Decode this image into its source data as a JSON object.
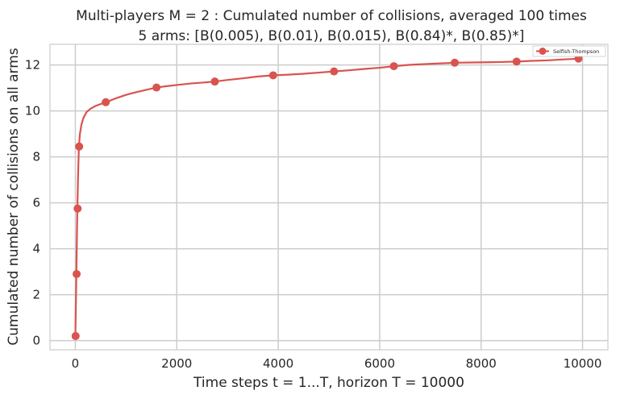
{
  "chart_data": {
    "type": "line",
    "title_line1": "Multi-players M = 2 : Cumulated number of collisions, averaged 100 times",
    "title_line2": "5 arms: [B(0.005), B(0.01), B(0.015), B(0.84)*, B(0.85)*]",
    "xlabel": "Time steps t = 1...T, horizon T = 10000",
    "ylabel": "Cumulated number of collisions on all arms",
    "xlim": [
      -500,
      10500
    ],
    "ylim": [
      -0.4,
      12.9
    ],
    "x_ticks": [
      0,
      2000,
      4000,
      6000,
      8000,
      10000
    ],
    "x_tick_labels": [
      "0",
      "2000",
      "4000",
      "6000",
      "8000",
      "10000"
    ],
    "y_ticks": [
      0,
      2,
      4,
      6,
      8,
      10,
      12
    ],
    "y_tick_labels": [
      "0",
      "2",
      "4",
      "6",
      "8",
      "10",
      "12"
    ],
    "grid": true,
    "legend_position": "top-right",
    "series": [
      {
        "name": "Selfish-Thompson",
        "color": "#d9534f",
        "curve_x": [
          0,
          10,
          20,
          30,
          40,
          55,
          70,
          90,
          120,
          160,
          220,
          300,
          400,
          500,
          600,
          800,
          1000,
          1200,
          1400,
          1600,
          1800,
          2000,
          2300,
          2600,
          2750,
          3000,
          3300,
          3600,
          3900,
          4200,
          4500,
          4800,
          5100,
          5400,
          5700,
          6000,
          6300,
          6600,
          6900,
          7200,
          7500,
          7800,
          8100,
          8400,
          8700,
          9000,
          9300,
          9600,
          9950
        ],
        "curve_y": [
          0.2,
          1.5,
          2.9,
          4.4,
          5.75,
          7.3,
          8.45,
          9.0,
          9.4,
          9.7,
          9.95,
          10.1,
          10.22,
          10.3,
          10.38,
          10.55,
          10.7,
          10.82,
          10.92,
          11.02,
          11.08,
          11.13,
          11.2,
          11.25,
          11.28,
          11.35,
          11.42,
          11.5,
          11.55,
          11.58,
          11.62,
          11.67,
          11.72,
          11.77,
          11.83,
          11.88,
          11.95,
          12.01,
          12.04,
          12.07,
          12.1,
          12.11,
          12.12,
          12.13,
          12.15,
          12.18,
          12.2,
          12.24,
          12.28
        ],
        "marker_x": [
          5,
          25,
          45,
          75,
          600,
          1600,
          2750,
          3900,
          5100,
          6280,
          7480,
          8700,
          9920
        ],
        "marker_y": [
          0.2,
          2.9,
          5.75,
          8.45,
          10.38,
          11.02,
          11.28,
          11.55,
          11.72,
          11.95,
          12.1,
          12.15,
          12.28
        ]
      }
    ]
  }
}
